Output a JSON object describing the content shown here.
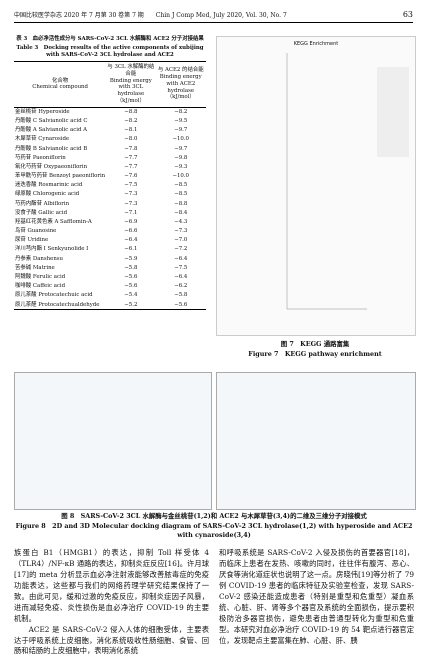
{
  "header": {
    "journal": "中国比较医学杂志 2020 年 7 月第 30 卷第 7 期　　Chin J Comp Med, July 2020, Vol. 30, No. 7",
    "page": "63"
  },
  "table": {
    "title_cn": "表 3　血必净活性成分与 SARS-CoV-2 3CL 水解酶和 ACE2 分子对接结果",
    "title_en": "Table 3　Docking results of the active components of xubijing with SARS-CoV-2 3CL hydrolase and ACE2",
    "columns": [
      "化合物\nChemical compound",
      "与 3CL 水解酶的结合能\nBinding energy with 3CL hydrolase\n（kJ/mol）",
      "与 ACE2 的结合能\nBinding energy with ACE2 hydrolase\n（kJ/mol）"
    ],
    "rows": [
      [
        "金丝桃苷 Hyperoside",
        "−8.8",
        "−8.2"
      ],
      [
        "丹酚酸 C Salvianolic acid C",
        "−8.2",
        "−9.5"
      ],
      [
        "丹酚酸 A Salvianolic acid A",
        "−8.1",
        "−9.7"
      ],
      [
        "木犀草苷 Cynaroside",
        "−8.0",
        "−10.0"
      ],
      [
        "丹酚酸 B Salvianolic acid B",
        "−7.8",
        "−9.7"
      ],
      [
        "芍药苷 Paeoniflorin",
        "−7.7",
        "−9.8"
      ],
      [
        "氧化芍药苷 Oxypaeoniflorin",
        "−7.7",
        "−9.3"
      ],
      [
        "苯甲酰芍药苷 Benzoyl paeoniflorin",
        "−7.6",
        "−10.0"
      ],
      [
        "迷迭香酸 Rosmarinic acid",
        "−7.5",
        "−8.5"
      ],
      [
        "绿原酸 Chlorogenic acid",
        "−7.3",
        "−8.5"
      ],
      [
        "芍药内酯苷 Albiflorin",
        "−7.3",
        "−8.8"
      ],
      [
        "没食子酸 Gallic acid",
        "−7.1",
        "−8.4"
      ],
      [
        "羟基红花黄色素 A Safflomin-A",
        "−6.9",
        "−4.3"
      ],
      [
        "鸟苷 Guanosine",
        "−6.6",
        "−7.3"
      ],
      [
        "尿苷 Uridine",
        "−6.4",
        "−7.0"
      ],
      [
        "洋川芎内酯 I Senkyunolide I",
        "−6.1",
        "−7.2"
      ],
      [
        "丹参素 Danshensu",
        "−5.9",
        "−6.4"
      ],
      [
        "苦参碱 Matrine",
        "−5.8",
        "−7.5"
      ],
      [
        "阿魏酸 Ferulic acid",
        "−5.6",
        "−6.4"
      ],
      [
        "咖啡酸 Caffeic acid",
        "−5.6",
        "−6.2"
      ],
      [
        "原儿茶酸 Protocatechuic acid",
        "−5.4",
        "−5.8"
      ],
      [
        "原儿茶醛 Protocatechualdehyde",
        "−5.2",
        "−5.6"
      ]
    ]
  },
  "figure7": {
    "panel_title": "KEGG Enrichment",
    "caption_cn": "图 7　KEGG 通路富集",
    "caption_en": "Figure 7　KEGG pathway enrichment"
  },
  "figure8": {
    "caption_cn": "图 8　SARS-CoV-2 3CL 水解酶与金丝桃苷(1,2)和 ACE2 与木犀草苷(3,4)的二维及三维分子对接模式",
    "caption_en": "Figure 8　2D and 3D Molecular docking diagram of SARS-CoV-2 3CL hydrolase(1,2) with hyperoside and ACE2 with cynaroside(3,4)"
  },
  "body": {
    "left": [
      "族蛋白 B1（HMGB1）的表达，抑制 Toll 样受体 4（TLR4）/NF-κB 通路的表达，抑制炎症反应[16]。许月球[17]的 meta 分析显示血必净注射液能够改善脓毒症的免疫功能表达，这些都与我们的网络药理学研究结果保持了一致。由此可见，缓和过激的免疫反应，抑制炎症因子风暴，进而减轻免疫、炎性损伤是血必净治疗 COVID-19 的主要机制。",
      "ACE2 是 SARS-CoV-2 侵入人体的细胞受体，主要表达于呼吸系统上皮细胞，消化系统吸收性肠细胞、食管、回肠和结肠的上皮细胞中，表明消化系统"
    ],
    "right": [
      "和呼吸系统是 SARS-CoV-2 入侵及损伤的首要器官[18]，而临床上患者在发热、咳嗽的同时，往往伴有腹泻、恶心、厌食等消化道症状也说明了这一点。房晓伟[19]等分析了 79 例 COVID-19 患者的临床特征及实验室检查，发现 SARS-CoV-2 感染还能造成患者（特别是重型和危重型）凝血系统、心脏、肝、肾等多个器官及系统的全面损伤，提示要积极防治多器官损伤，避免患者由普通型转化为重型和危重型。本研究对血必净治疗 COVID-19 的 54 靶点进行器官定位，发现靶点主要富集在肺、心脏、肝、胰"
    ]
  }
}
